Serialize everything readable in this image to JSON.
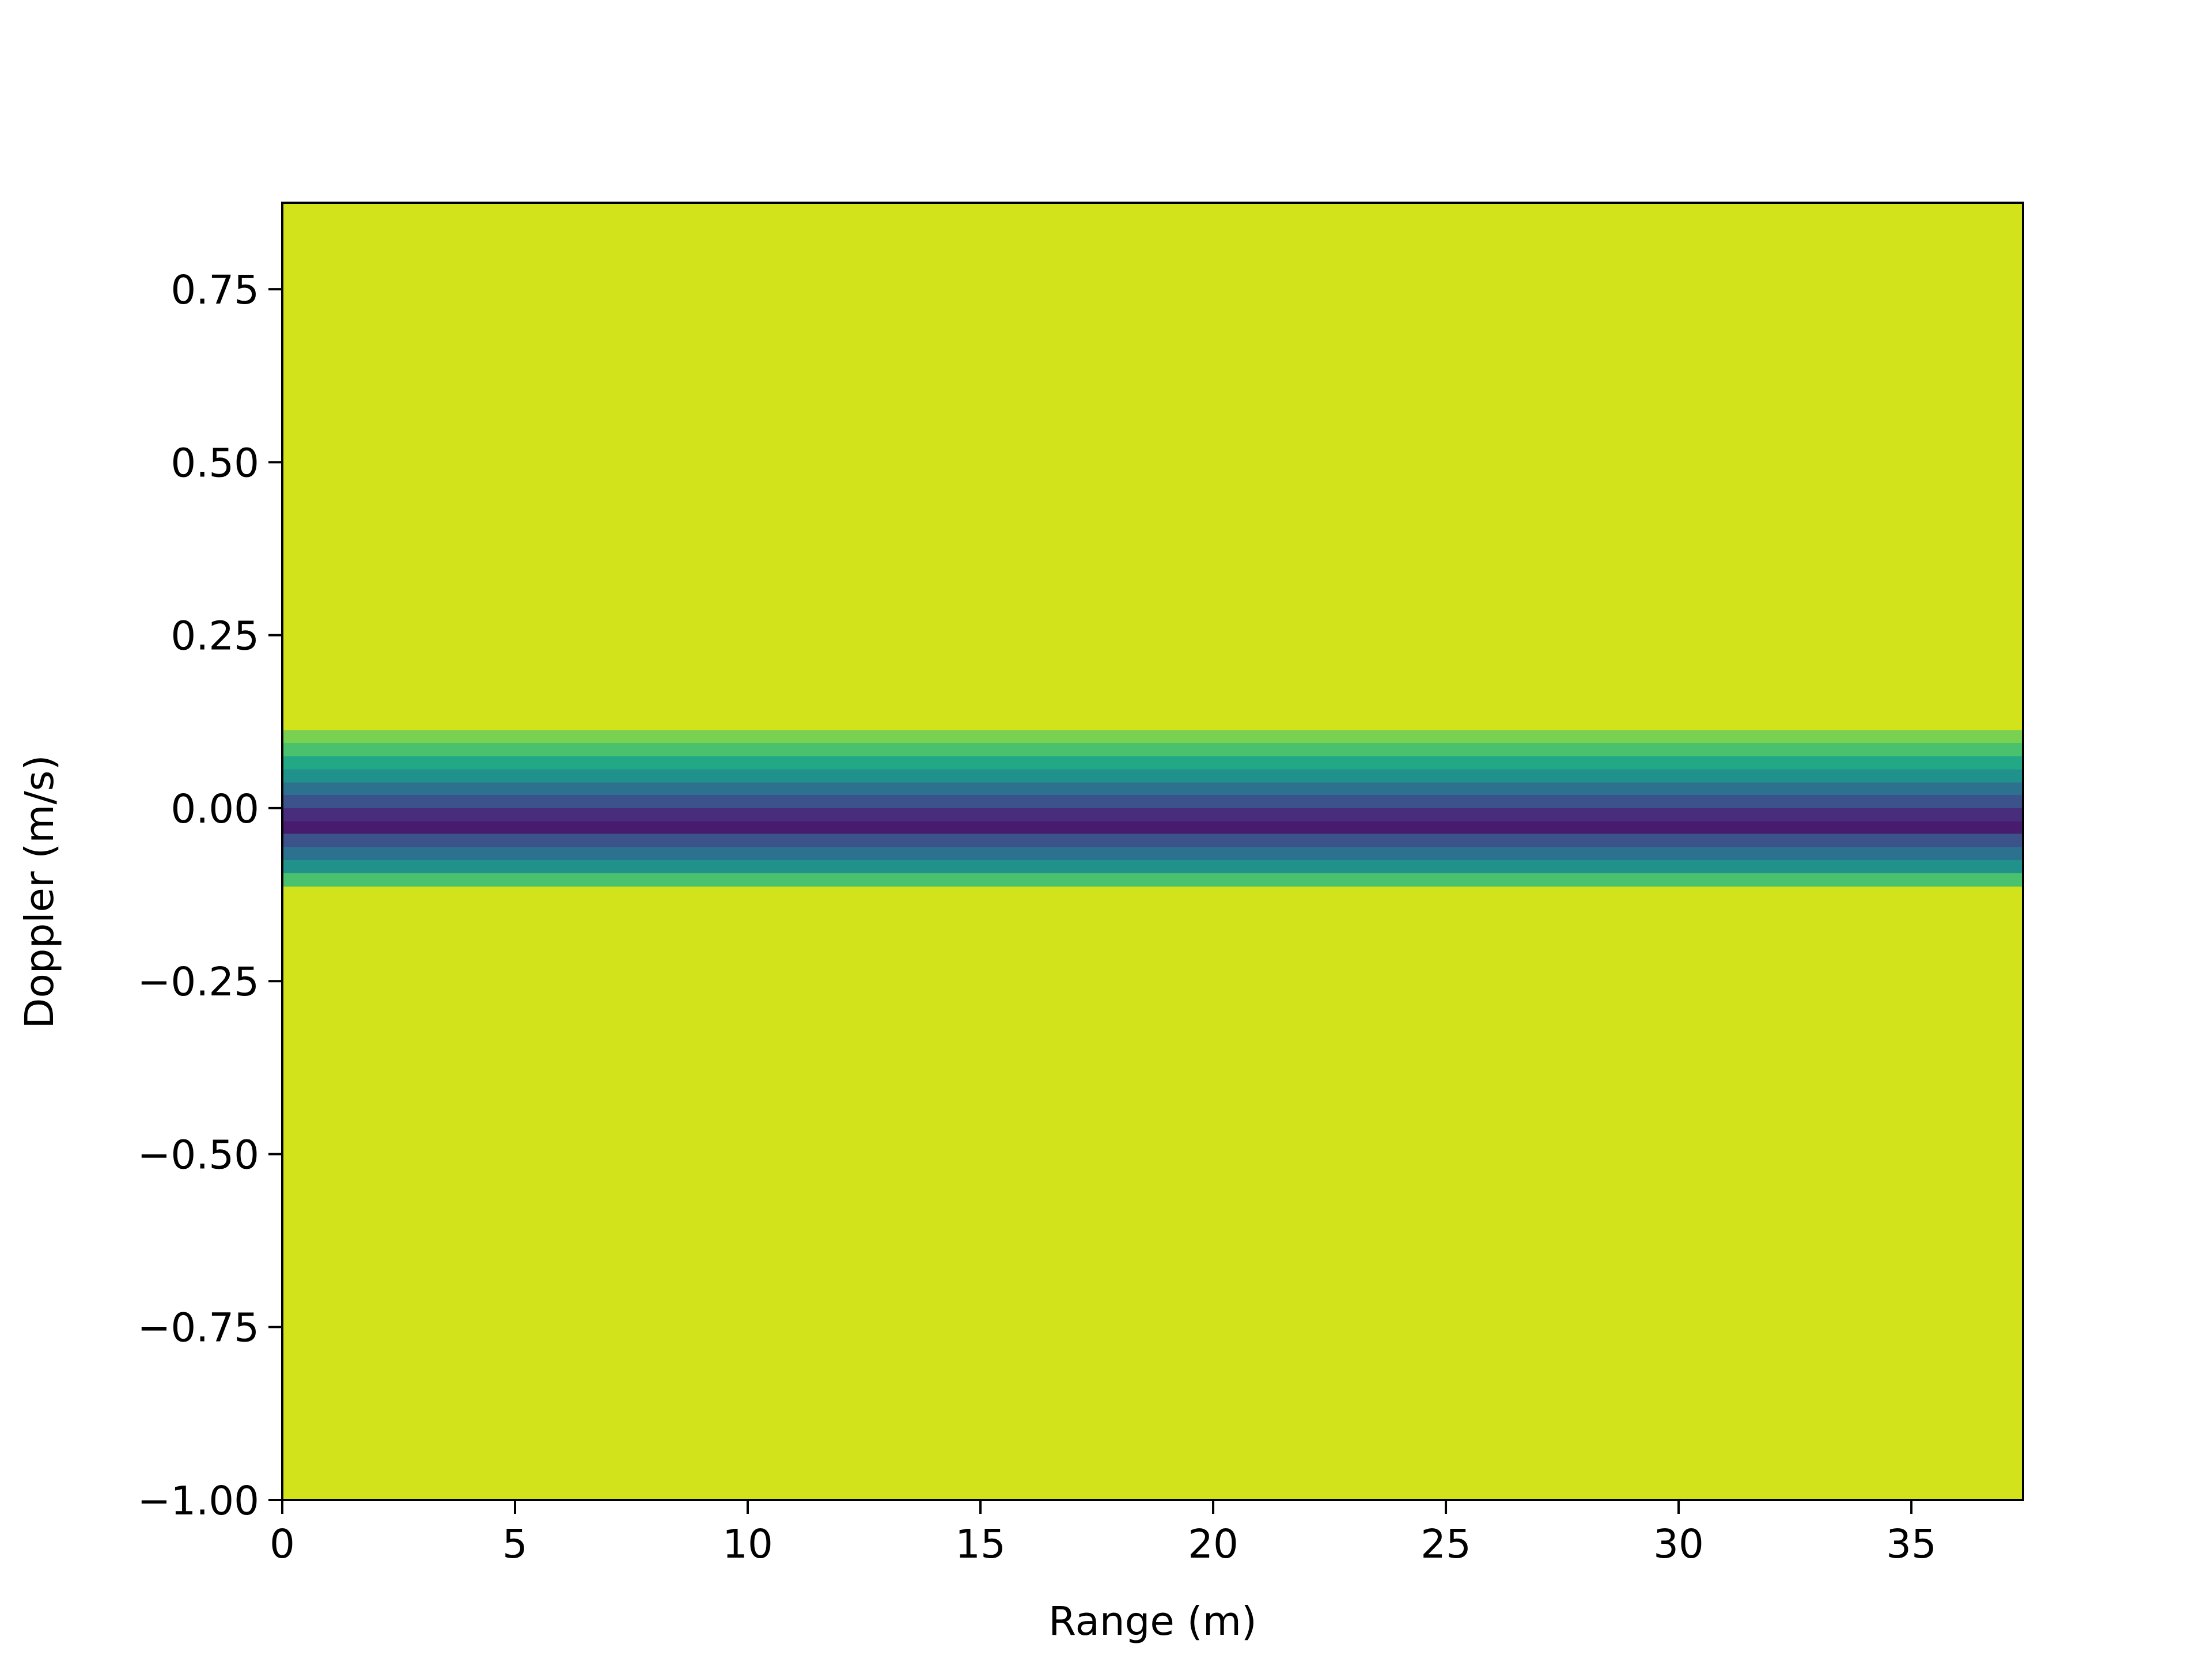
{
  "chart_data": {
    "type": "heatmap",
    "title": "",
    "xlabel": "Range (m)",
    "ylabel": "Doppler (m/s)",
    "xlim": [
      0,
      37.4
    ],
    "ylim": [
      -1.0,
      0.875
    ],
    "xticks": [
      {
        "value": 0,
        "label": "0"
      },
      {
        "value": 5,
        "label": "5"
      },
      {
        "value": 10,
        "label": "10"
      },
      {
        "value": 15,
        "label": "15"
      },
      {
        "value": 20,
        "label": "20"
      },
      {
        "value": 25,
        "label": "25"
      },
      {
        "value": 30,
        "label": "30"
      },
      {
        "value": 35,
        "label": "35"
      }
    ],
    "yticks": [
      {
        "value": -1.0,
        "label": "−1.00"
      },
      {
        "value": -0.75,
        "label": "−0.75"
      },
      {
        "value": -0.5,
        "label": "−0.50"
      },
      {
        "value": -0.25,
        "label": "−0.25"
      },
      {
        "value": 0.0,
        "label": "0.00"
      },
      {
        "value": 0.25,
        "label": "0.25"
      },
      {
        "value": 0.5,
        "label": "0.50"
      },
      {
        "value": 0.75,
        "label": "0.75"
      }
    ],
    "colormap": "viridis",
    "background_color": "#d2e21b",
    "bands": [
      {
        "y0": 0.094,
        "y1": 0.113,
        "color": "#7ad151"
      },
      {
        "y0": 0.075,
        "y1": 0.094,
        "color": "#4ac16d"
      },
      {
        "y0": 0.056,
        "y1": 0.075,
        "color": "#22a884"
      },
      {
        "y0": 0.037,
        "y1": 0.056,
        "color": "#21918c"
      },
      {
        "y0": 0.019,
        "y1": 0.037,
        "color": "#2c728e"
      },
      {
        "y0": 0.0,
        "y1": 0.019,
        "color": "#3b528b"
      },
      {
        "y0": -0.019,
        "y1": 0.0,
        "color": "#472d7b"
      },
      {
        "y0": -0.037,
        "y1": -0.019,
        "color": "#471c6e"
      },
      {
        "y0": -0.056,
        "y1": -0.037,
        "color": "#3b528b"
      },
      {
        "y0": -0.075,
        "y1": -0.056,
        "color": "#2c728e"
      },
      {
        "y0": -0.094,
        "y1": -0.075,
        "color": "#21918c"
      },
      {
        "y0": -0.113,
        "y1": -0.094,
        "color": "#4ac16d"
      }
    ],
    "grid": false,
    "legend": "none"
  }
}
